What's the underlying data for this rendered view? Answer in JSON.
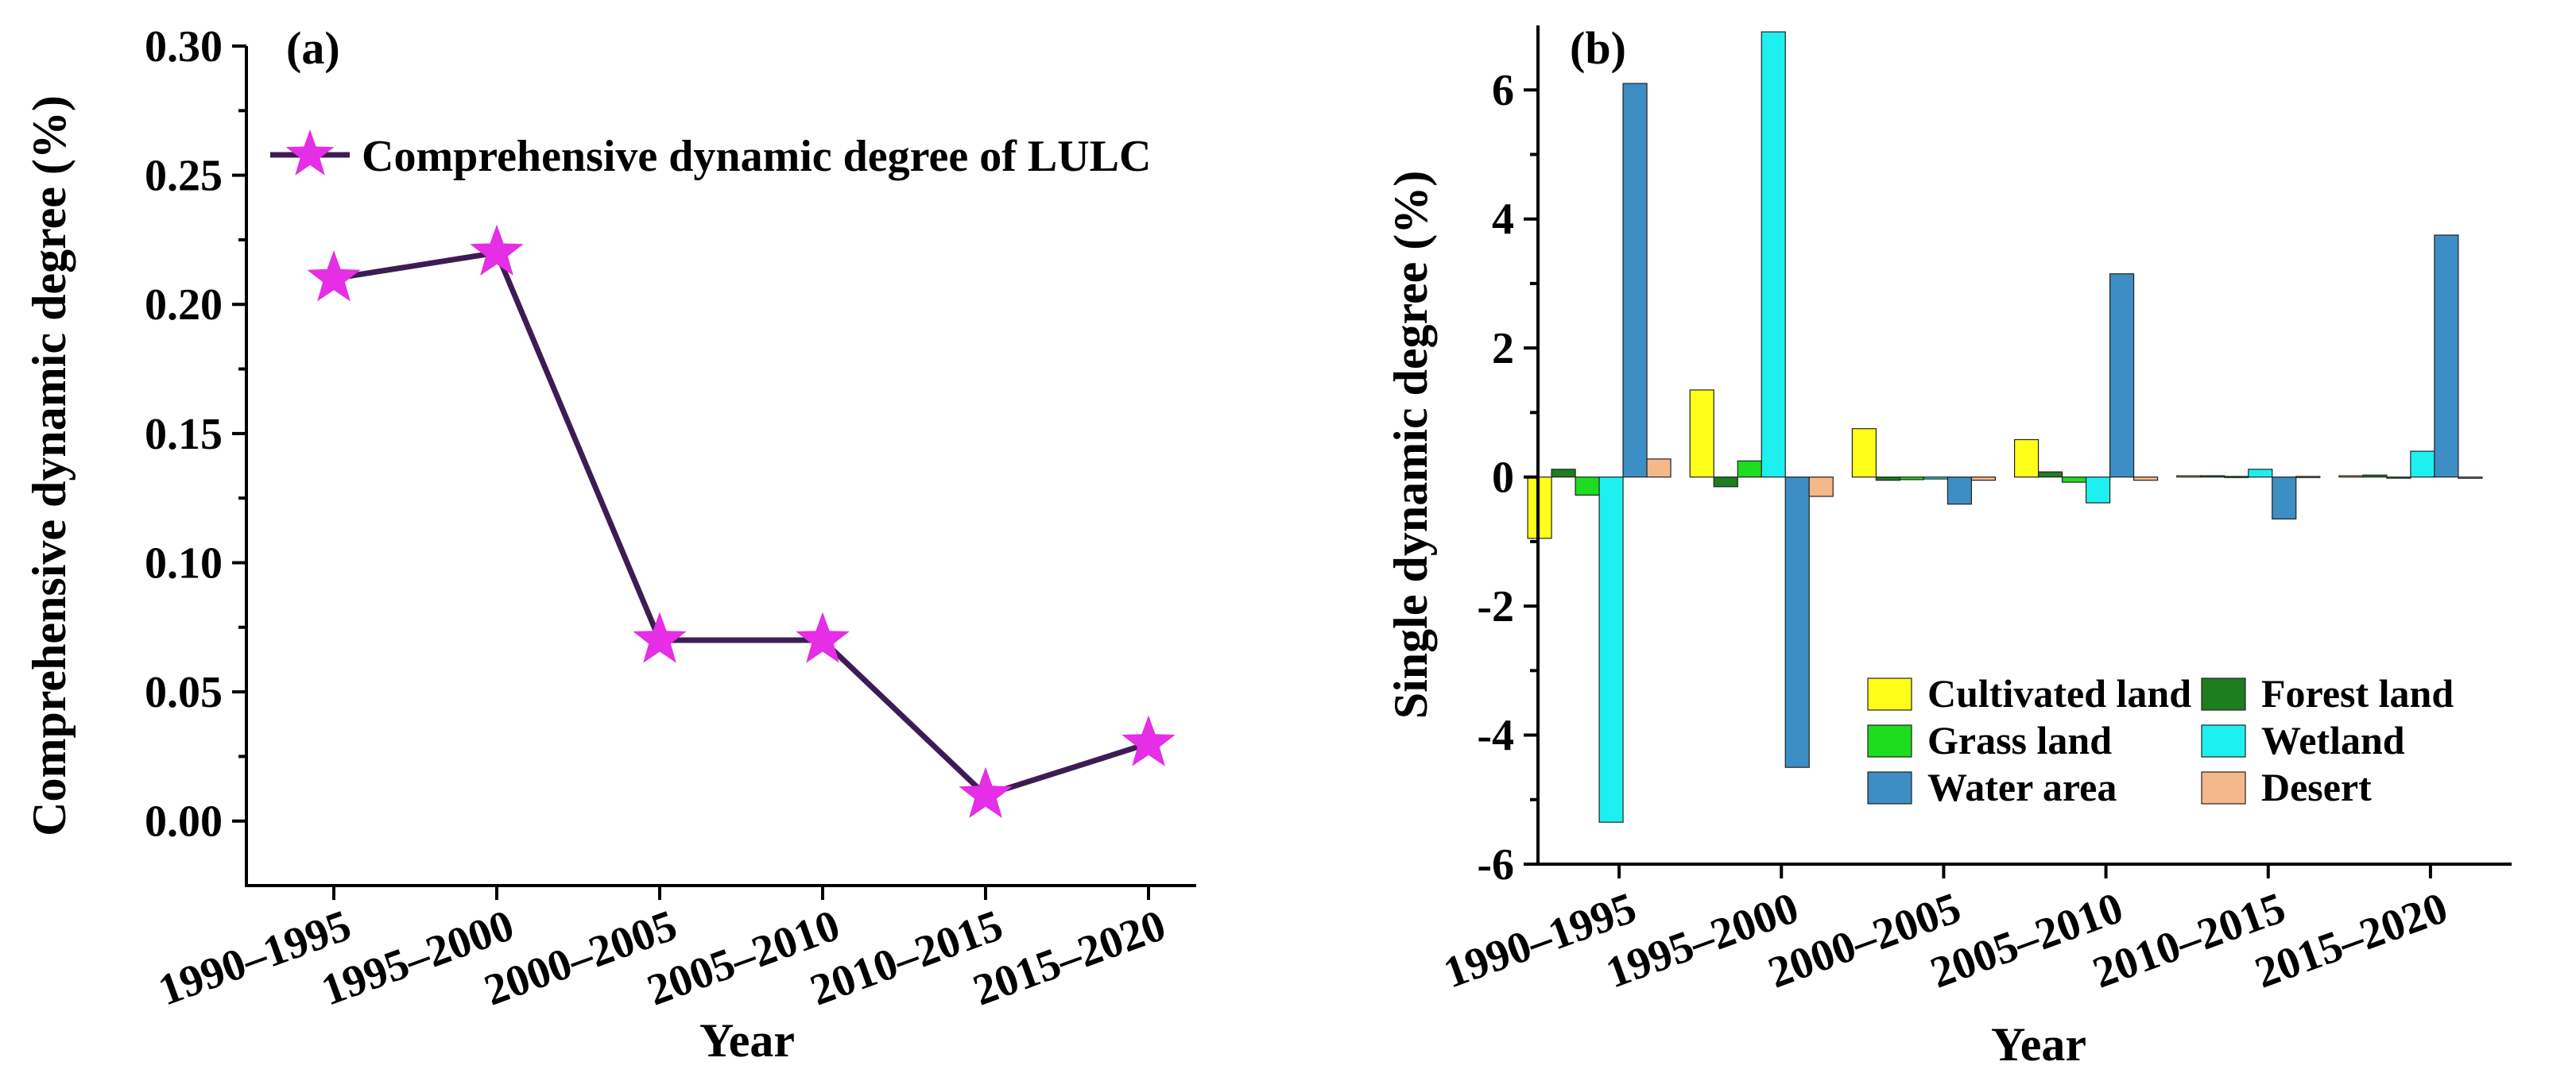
{
  "chart_data": [
    {
      "type": "line",
      "panel_label": "(a)",
      "xlabel": "Year",
      "ylabel": "Comprehensive dynamic degree (%)",
      "categories": [
        "1990–1995",
        "1995–2000",
        "2000–2005",
        "2005–2010",
        "2010–2015",
        "2015–2020"
      ],
      "yticks": [
        "0.00",
        "0.05",
        "0.10",
        "0.15",
        "0.20",
        "0.25",
        "0.30"
      ],
      "ylim": [
        -0.025,
        0.3
      ],
      "legend_position": "top-left",
      "series": [
        {
          "name": "Comprehensive dynamic degree of LULC",
          "values": [
            0.21,
            0.22,
            0.07,
            0.07,
            0.01,
            0.03
          ],
          "marker": "star",
          "line_color": "#3d1c53",
          "marker_color": "#e52ee5"
        }
      ]
    },
    {
      "type": "bar",
      "panel_label": "(b)",
      "xlabel": "Year",
      "ylabel": "Single dynamic degree (%)",
      "categories": [
        "1990–1995",
        "1995–2000",
        "2000–2005",
        "2005–2010",
        "2010–2015",
        "2015–2020"
      ],
      "yticks": [
        "-6",
        "-4",
        "-2",
        "0",
        "2",
        "4",
        "6"
      ],
      "ylim": [
        -6,
        7
      ],
      "legend_position": "bottom-right",
      "series": [
        {
          "name": "Cultivated land",
          "color": "#ffff1a",
          "values": [
            -0.95,
            1.35,
            0.75,
            0.58,
            0.02,
            0.02
          ]
        },
        {
          "name": "Forest land",
          "color": "#1e7d1e",
          "values": [
            0.12,
            -0.15,
            -0.05,
            0.08,
            0.02,
            0.03
          ]
        },
        {
          "name": "Grass land",
          "color": "#1edc1e",
          "values": [
            -0.28,
            0.25,
            -0.04,
            -0.08,
            0.01,
            -0.01
          ]
        },
        {
          "name": "Wetland",
          "color": "#1ef0f0",
          "values": [
            -5.35,
            6.9,
            -0.03,
            -0.4,
            0.12,
            0.4
          ]
        },
        {
          "name": "Water area",
          "color": "#3d8ec4",
          "values": [
            6.1,
            -4.5,
            -0.42,
            3.15,
            -0.65,
            3.75
          ]
        },
        {
          "name": "Desert",
          "color": "#f5b88a",
          "values": [
            0.28,
            -0.3,
            -0.05,
            -0.05,
            0.01,
            -0.02
          ]
        }
      ]
    }
  ]
}
